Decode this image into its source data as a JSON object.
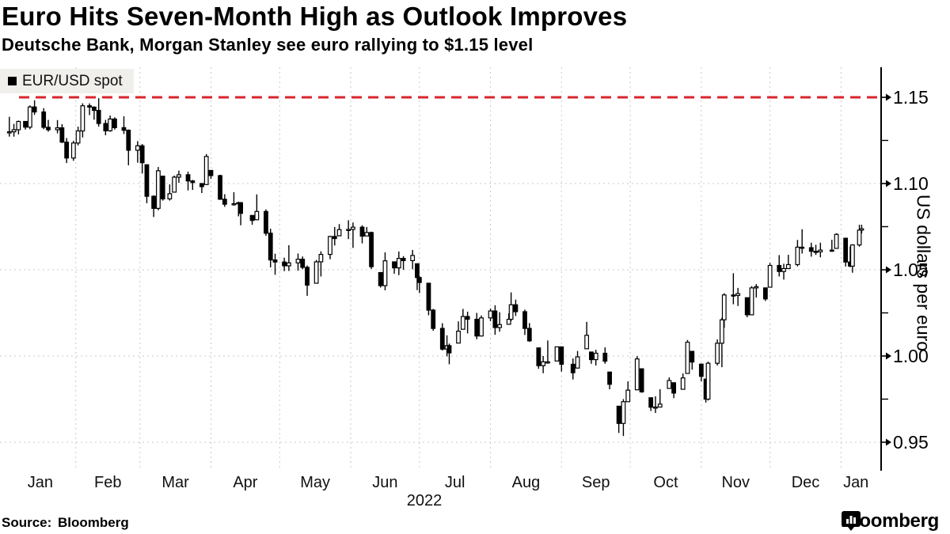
{
  "header": {
    "title": "Euro Hits Seven-Month High as Outlook Improves",
    "subtitle": "Deutsche Bank, Morgan Stanley see euro rallying to $1.15 level"
  },
  "legend": {
    "swatch_color": "#000000",
    "label": "EUR/USD spot"
  },
  "footer": {
    "source_label": "Source: Bloomberg",
    "brand_wordmark": "Bloomberg",
    "brand_icon": "bloomberg-chart-pin-icon"
  },
  "colors": {
    "reference_red": "#d8262c",
    "grid_gray": "#c9c9c9",
    "bar_black": "#000000",
    "legend_bg": "#f0efec"
  },
  "chart_data": {
    "type": "candlestick",
    "title": "Euro Hits Seven-Month High as Outlook Improves",
    "subtitle": "Deutsche Bank, Morgan Stanley see euro rallying to $1.15 level",
    "ylabel": "US dollars per euro",
    "xlabel_year": "2022",
    "legend_position": "top-left",
    "grid": "dotted",
    "ylim": [
      0.935,
      1.167
    ],
    "yticks_major": [
      1.15,
      1.1,
      1.05,
      1.0,
      0.95
    ],
    "yticks_minor": [
      1.125,
      1.075,
      1.025,
      0.975
    ],
    "xtick_labels": [
      "Jan",
      "Feb",
      "Mar",
      "Apr",
      "May",
      "Jun",
      "Jul",
      "Aug",
      "Sep",
      "Oct",
      "Nov",
      "Dec",
      "Jan"
    ],
    "reference_line": {
      "value": 1.15,
      "style": "dashed",
      "color": "#d8262c"
    },
    "series": [
      {
        "name": "EUR/USD spot",
        "color": "#000000",
        "columns": [
          "date",
          "high",
          "low",
          "close"
        ],
        "bars": [
          [
            "2022-01-03",
            1.1387,
            1.1272,
            1.13
          ],
          [
            "2022-01-05",
            1.1346,
            1.1272,
            1.1312
          ],
          [
            "2022-01-07",
            1.1365,
            1.1285,
            1.136
          ],
          [
            "2022-01-10",
            1.1362,
            1.1313,
            1.1327
          ],
          [
            "2022-01-12",
            1.1453,
            1.1315,
            1.1444
          ],
          [
            "2022-01-14",
            1.1483,
            1.1398,
            1.1415
          ],
          [
            "2022-01-18",
            1.1437,
            1.1315,
            1.1326
          ],
          [
            "2022-01-20",
            1.1369,
            1.1301,
            1.1312
          ],
          [
            "2022-01-24",
            1.1368,
            1.1291,
            1.1323
          ],
          [
            "2022-01-26",
            1.1344,
            1.1235,
            1.124
          ],
          [
            "2022-01-28",
            1.1264,
            1.1119,
            1.1148
          ],
          [
            "2022-01-31",
            1.1248,
            1.1132,
            1.1235
          ],
          [
            "2022-02-02",
            1.133,
            1.1221,
            1.1305
          ],
          [
            "2022-02-04",
            1.1465,
            1.1267,
            1.1451
          ],
          [
            "2022-02-07",
            1.1465,
            1.1397,
            1.1443
          ],
          [
            "2022-02-09",
            1.1448,
            1.137,
            1.1424
          ],
          [
            "2022-02-11",
            1.1495,
            1.133,
            1.1348
          ],
          [
            "2022-02-14",
            1.1369,
            1.128,
            1.1306
          ],
          [
            "2022-02-16",
            1.1395,
            1.13,
            1.1374
          ],
          [
            "2022-02-18",
            1.1384,
            1.1313,
            1.1324
          ],
          [
            "2022-02-22",
            1.139,
            1.1287,
            1.1309
          ],
          [
            "2022-02-24",
            1.1314,
            1.1106,
            1.1193
          ],
          [
            "2022-02-28",
            1.1246,
            1.1121,
            1.1219
          ],
          [
            "2022-03-02",
            1.1229,
            1.1058,
            1.1121
          ],
          [
            "2022-03-04",
            1.1109,
            1.0886,
            1.0926
          ],
          [
            "2022-03-07",
            1.0932,
            1.0806,
            1.0856
          ],
          [
            "2022-03-09",
            1.1096,
            1.0845,
            1.1074
          ],
          [
            "2022-03-11",
            1.1043,
            1.0901,
            1.0911
          ],
          [
            "2022-03-14",
            1.0995,
            1.0901,
            1.0941
          ],
          [
            "2022-03-16",
            1.1046,
            1.095,
            1.1037
          ],
          [
            "2022-03-18",
            1.1075,
            1.1004,
            1.1051
          ],
          [
            "2022-03-22",
            1.1069,
            1.096,
            1.1015
          ],
          [
            "2022-03-24",
            1.1021,
            1.0963,
            1.1006
          ],
          [
            "2022-03-28",
            1.1,
            1.0945,
            1.0982
          ],
          [
            "2022-03-30",
            1.1171,
            1.0994,
            1.1157
          ],
          [
            "2022-04-01",
            1.1076,
            1.1027,
            1.1046
          ],
          [
            "2022-04-05",
            1.1051,
            1.0905,
            1.0909
          ],
          [
            "2022-04-07",
            1.0938,
            1.0865,
            1.088
          ],
          [
            "2022-04-11",
            1.095,
            1.0872,
            1.0883
          ],
          [
            "2022-04-13",
            1.0895,
            1.081,
            1.0889
          ],
          [
            "2022-04-14",
            1.0893,
            1.0758,
            1.0827
          ],
          [
            "2022-04-19",
            1.0815,
            1.0761,
            1.0786
          ],
          [
            "2022-04-21",
            1.0937,
            1.079,
            1.0838
          ],
          [
            "2022-04-25",
            1.085,
            1.0697,
            1.0712
          ],
          [
            "2022-04-27",
            1.0738,
            1.0514,
            1.0557
          ],
          [
            "2022-04-29",
            1.0593,
            1.0471,
            1.0545
          ],
          [
            "2022-05-03",
            1.057,
            1.0492,
            1.0523
          ],
          [
            "2022-05-05",
            1.0642,
            1.0493,
            1.054
          ],
          [
            "2022-05-09",
            1.0594,
            1.0495,
            1.0561
          ],
          [
            "2022-05-11",
            1.0577,
            1.0503,
            1.0514
          ],
          [
            "2022-05-13",
            1.0525,
            1.0349,
            1.0411
          ],
          [
            "2022-05-17",
            1.0557,
            1.0422,
            1.0546
          ],
          [
            "2022-05-19",
            1.0607,
            1.0461,
            1.0589
          ],
          [
            "2022-05-23",
            1.0697,
            1.0561,
            1.0693
          ],
          [
            "2022-05-25",
            1.0748,
            1.0641,
            1.0681
          ],
          [
            "2022-05-27",
            1.0765,
            1.0697,
            1.0733
          ],
          [
            "2022-05-31",
            1.0787,
            1.0678,
            1.0734
          ],
          [
            "2022-06-02",
            1.0774,
            1.0627,
            1.0747
          ],
          [
            "2022-06-06",
            1.0758,
            1.0653,
            1.0695
          ],
          [
            "2022-06-08",
            1.0748,
            1.0696,
            1.0716
          ],
          [
            "2022-06-10",
            1.0721,
            1.0505,
            1.0518
          ],
          [
            "2022-06-14",
            1.0484,
            1.0397,
            1.0408
          ],
          [
            "2022-06-16",
            1.0601,
            1.0381,
            1.0552
          ],
          [
            "2022-06-20",
            1.0546,
            1.0477,
            1.0511
          ],
          [
            "2022-06-22",
            1.0606,
            1.0469,
            1.0566
          ],
          [
            "2022-06-24",
            1.0579,
            1.05,
            1.0553
          ],
          [
            "2022-06-28",
            1.0615,
            1.0503,
            1.0583
          ],
          [
            "2022-06-30",
            1.0535,
            1.0382,
            1.0455
          ],
          [
            "2022-07-01",
            1.0463,
            1.0365,
            1.0426
          ],
          [
            "2022-07-05",
            1.0422,
            1.0236,
            1.0266
          ],
          [
            "2022-07-07",
            1.0273,
            1.0146,
            1.016
          ],
          [
            "2022-07-11",
            1.019,
            1.0032,
            1.004
          ],
          [
            "2022-07-13",
            1.012,
            0.9998,
            1.006
          ],
          [
            "2022-07-14",
            1.0072,
            0.9952,
            1.0018
          ],
          [
            "2022-07-18",
            1.0201,
            1.0075,
            1.0144
          ],
          [
            "2022-07-20",
            1.0273,
            1.0155,
            1.0229
          ],
          [
            "2022-07-22",
            1.0257,
            1.0131,
            1.0213
          ],
          [
            "2022-07-26",
            1.025,
            1.0097,
            1.0116
          ],
          [
            "2022-07-28",
            1.0235,
            1.0113,
            1.0221
          ],
          [
            "2022-08-01",
            1.0275,
            1.0202,
            1.0261
          ],
          [
            "2022-08-03",
            1.0294,
            1.0123,
            1.0165
          ],
          [
            "2022-08-05",
            1.0254,
            1.0141,
            1.0182
          ],
          [
            "2022-08-09",
            1.0248,
            1.0184,
            1.0213
          ],
          [
            "2022-08-10",
            1.0369,
            1.0202,
            1.0297
          ],
          [
            "2022-08-12",
            1.0327,
            1.0232,
            1.0257
          ],
          [
            "2022-08-16",
            1.0269,
            1.0122,
            1.016
          ],
          [
            "2022-08-18",
            1.0191,
            1.0082,
            1.0088
          ],
          [
            "2022-08-22",
            1.0047,
            0.9926,
            0.9944
          ],
          [
            "2022-08-24",
            1.0,
            0.99,
            0.9966
          ],
          [
            "2022-08-26",
            1.009,
            0.9955,
            0.9966
          ],
          [
            "2022-08-30",
            1.0055,
            0.9971,
            1.0053
          ],
          [
            "2022-09-01",
            1.0054,
            0.991,
            0.9952
          ],
          [
            "2022-09-06",
            0.9986,
            0.9864,
            0.9903
          ],
          [
            "2022-09-08",
            1.0029,
            0.993,
            0.9995
          ],
          [
            "2022-09-12",
            1.0198,
            1.0042,
            1.012
          ],
          [
            "2022-09-14",
            1.0023,
            0.9955,
            0.9979
          ],
          [
            "2022-09-16",
            1.0036,
            0.9945,
            1.0016
          ],
          [
            "2022-09-20",
            1.005,
            0.9955,
            0.997
          ],
          [
            "2022-09-22",
            0.9907,
            0.9807,
            0.9836
          ],
          [
            "2022-09-26",
            0.9709,
            0.9554,
            0.9609
          ],
          [
            "2022-09-28",
            0.975,
            0.9536,
            0.9735
          ],
          [
            "2022-09-30",
            0.9853,
            0.9734,
            0.9802
          ],
          [
            "2022-10-04",
            0.9999,
            0.9804,
            0.9983
          ],
          [
            "2022-10-06",
            0.9926,
            0.9787,
            0.9792
          ],
          [
            "2022-10-10",
            0.9758,
            0.9681,
            0.9703
          ],
          [
            "2022-10-12",
            0.9766,
            0.967,
            0.9704
          ],
          [
            "2022-10-14",
            0.9807,
            0.9704,
            0.9721
          ],
          [
            "2022-10-18",
            0.9876,
            0.9812,
            0.9858
          ],
          [
            "2022-10-20",
            0.9845,
            0.9756,
            0.9785
          ],
          [
            "2022-10-24",
            0.9899,
            0.9807,
            0.9873
          ],
          [
            "2022-10-26",
            1.0093,
            0.9899,
            1.008
          ],
          [
            "2022-10-28",
            1.0027,
            0.9921,
            0.9965
          ],
          [
            "2022-11-01",
            0.9953,
            0.9853,
            0.9882
          ],
          [
            "2022-11-03",
            0.9866,
            0.973,
            0.975
          ],
          [
            "2022-11-04",
            0.9967,
            0.9742,
            0.9958
          ],
          [
            "2022-11-08",
            1.0096,
            0.9945,
            1.0074
          ],
          [
            "2022-11-10",
            1.0222,
            0.9935,
            1.021
          ],
          [
            "2022-11-11",
            1.0364,
            1.0163,
            1.0354
          ],
          [
            "2022-11-15",
            1.048,
            1.03,
            1.0351
          ],
          [
            "2022-11-17",
            1.0395,
            1.029,
            1.0362
          ],
          [
            "2022-11-21",
            1.0338,
            1.0225,
            1.0239
          ],
          [
            "2022-11-23",
            1.0405,
            1.0238,
            1.0395
          ],
          [
            "2022-11-25",
            1.0417,
            1.0339,
            1.0402
          ],
          [
            "2022-11-29",
            1.0395,
            1.0319,
            1.0331
          ],
          [
            "2022-12-01",
            1.0539,
            1.0399,
            1.0525
          ],
          [
            "2022-12-05",
            1.0585,
            1.0461,
            1.049
          ],
          [
            "2022-12-07",
            1.0535,
            1.0443,
            1.0507
          ],
          [
            "2022-12-09",
            1.0587,
            1.0505,
            1.053
          ],
          [
            "2022-12-13",
            1.0673,
            1.052,
            1.0631
          ],
          [
            "2022-12-15",
            1.0735,
            1.0594,
            1.0628
          ],
          [
            "2022-12-19",
            1.0657,
            1.0576,
            1.0607
          ],
          [
            "2022-12-21",
            1.0645,
            1.0586,
            1.0604
          ],
          [
            "2022-12-23",
            1.0657,
            1.0572,
            1.0614
          ],
          [
            "2022-12-28",
            1.0674,
            1.0604,
            1.061
          ],
          [
            "2022-12-30",
            1.0712,
            1.0624,
            1.0705
          ],
          [
            "2023-01-03",
            1.0683,
            1.0519,
            1.0545
          ],
          [
            "2023-01-05",
            1.0635,
            1.0515,
            1.0521
          ],
          [
            "2023-01-06",
            1.0648,
            1.0483,
            1.0644
          ],
          [
            "2023-01-09",
            1.0761,
            1.0634,
            1.073
          ],
          [
            "2023-01-10",
            1.0761,
            1.0711,
            1.0738
          ]
        ]
      }
    ]
  }
}
